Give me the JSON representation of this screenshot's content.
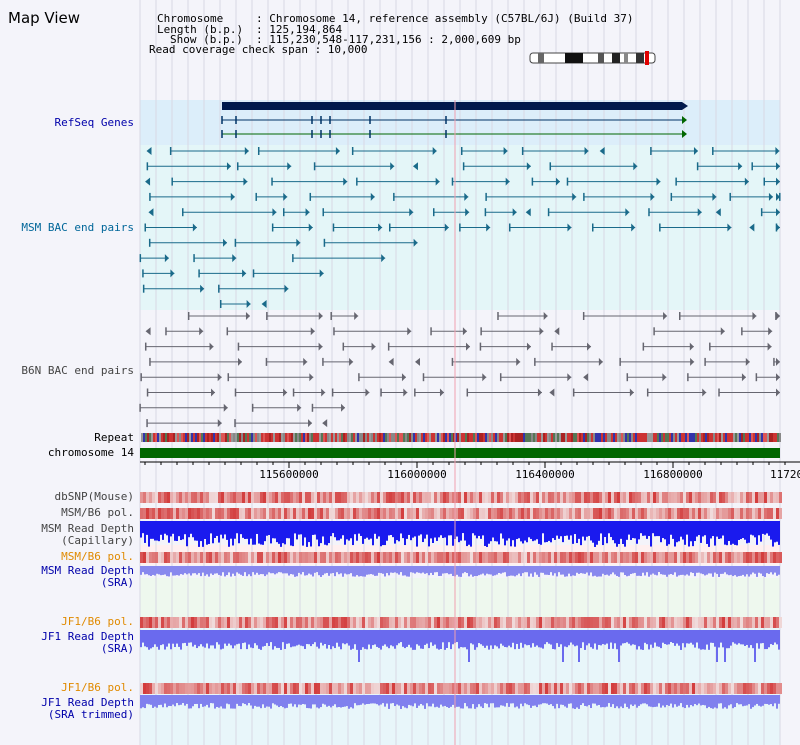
{
  "title": "Map View",
  "info": {
    "chromosome_label": "Chromosome",
    "chromosome_value": ": Chromosome 14, reference assembly (C57BL/6J) (Build 37)",
    "length_label": "Length (b.p.)",
    "length_value": ": 125,194,864",
    "show_label": "Show (b.p.)",
    "show_value": ": 115,230,548-117,231,156 : 2,000,609 bp",
    "coverage_text": "Read coverage check span : 10,000"
  },
  "tracks": {
    "refseq": "RefSeq Genes",
    "msm_bac": "MSM BAC end pairs",
    "b6n_bac": "B6N BAC end pairs",
    "repeat": "Repeat",
    "chromosome": "chromosome 14",
    "dbsnp": "dbSNP(Mouse)",
    "msm_pol_1": "MSM/B6 pol.",
    "msm_depth_cap_1": "MSM Read Depth",
    "msm_depth_cap_2": "(Capillary)",
    "msm_pol_2": "MSM/B6 pol.",
    "msm_depth_sra_1": "MSM Read Depth",
    "msm_depth_sra_2": "(SRA)",
    "jf1_pol_1": "JF1/B6 pol.",
    "jf1_depth_sra_1": "JF1 Read Depth",
    "jf1_depth_sra_2": "(SRA)",
    "jf1_pol_2": "JF1/B6 pol.",
    "jf1_depth_trim_1": "JF1 Read Depth",
    "jf1_depth_trim_2": "(SRA trimmed)"
  },
  "axis_ticks": [
    "115600000",
    "116000000",
    "116400000",
    "116800000",
    "11720"
  ],
  "colors": {
    "refseq_label": "#0000aa",
    "msm_label": "#006699",
    "gray_label": "#444444",
    "orange_label": "#e08a00",
    "blue_label": "#0000aa",
    "chromosome_bar": "#006600",
    "gene_bar": "#001a4d",
    "refseq_bg": "#dceefa",
    "msm_bg": "#e4f6f8",
    "depth_blue": "#0000ee",
    "depth_light": "#7777ee",
    "snp_red": "#ee3333"
  }
}
